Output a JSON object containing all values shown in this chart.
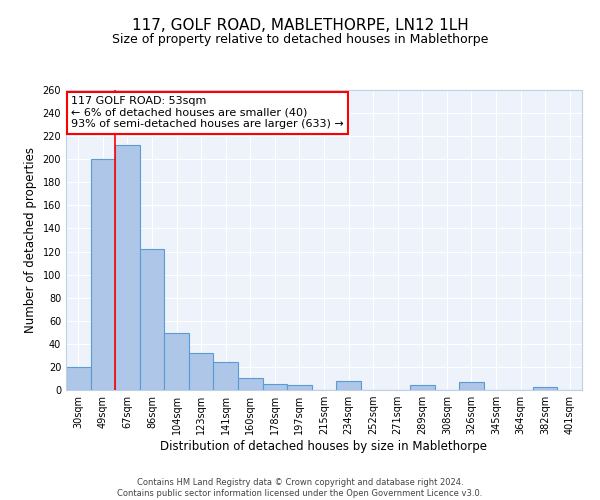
{
  "title": "117, GOLF ROAD, MABLETHORPE, LN12 1LH",
  "subtitle": "Size of property relative to detached houses in Mablethorpe",
  "xlabel": "Distribution of detached houses by size in Mablethorpe",
  "ylabel": "Number of detached properties",
  "bar_labels": [
    "30sqm",
    "49sqm",
    "67sqm",
    "86sqm",
    "104sqm",
    "123sqm",
    "141sqm",
    "160sqm",
    "178sqm",
    "197sqm",
    "215sqm",
    "234sqm",
    "252sqm",
    "271sqm",
    "289sqm",
    "308sqm",
    "326sqm",
    "345sqm",
    "364sqm",
    "382sqm",
    "401sqm"
  ],
  "bar_values": [
    20,
    200,
    212,
    122,
    49,
    32,
    24,
    10,
    5,
    4,
    0,
    8,
    0,
    0,
    4,
    0,
    7,
    0,
    0,
    3,
    0
  ],
  "bar_color": "#aec6e8",
  "bar_edge_color": "#5b9bd5",
  "background_color": "#eef3fb",
  "grid_color": "#ffffff",
  "ylim": [
    0,
    260
  ],
  "yticks": [
    0,
    20,
    40,
    60,
    80,
    100,
    120,
    140,
    160,
    180,
    200,
    220,
    240,
    260
  ],
  "red_line_x": 1.5,
  "annotation_title": "117 GOLF ROAD: 53sqm",
  "annotation_line1": "← 6% of detached houses are smaller (40)",
  "annotation_line2": "93% of semi-detached houses are larger (633) →",
  "footer_line1": "Contains HM Land Registry data © Crown copyright and database right 2024.",
  "footer_line2": "Contains public sector information licensed under the Open Government Licence v3.0.",
  "title_fontsize": 11,
  "subtitle_fontsize": 9,
  "axis_label_fontsize": 8.5,
  "tick_fontsize": 7,
  "annotation_fontsize": 8,
  "footer_fontsize": 6
}
